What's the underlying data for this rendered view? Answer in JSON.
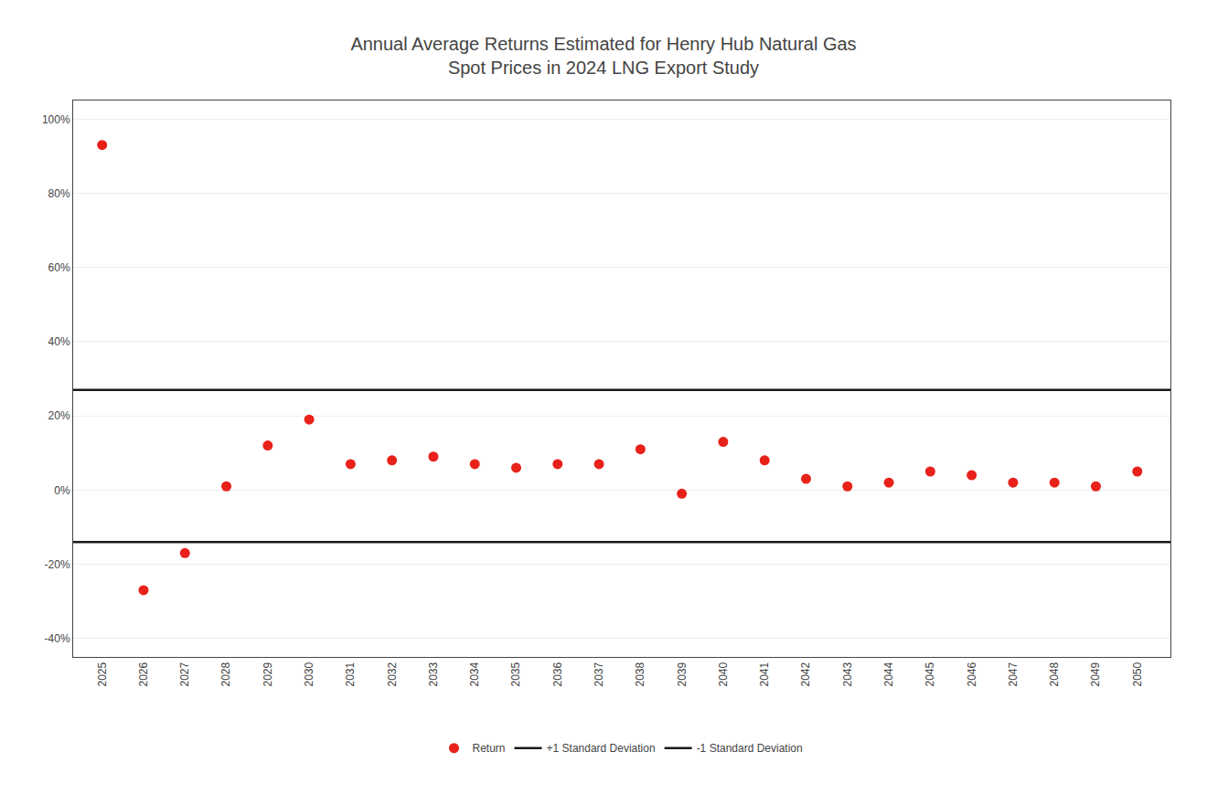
{
  "chart_data": {
    "type": "scatter",
    "title": "Annual Average Returns Estimated for Henry Hub Natural Gas\nSpot Prices in 2024 LNG Export Study",
    "x": [
      2025,
      2026,
      2027,
      2028,
      2029,
      2030,
      2031,
      2032,
      2033,
      2034,
      2035,
      2036,
      2037,
      2038,
      2039,
      2040,
      2041,
      2042,
      2043,
      2044,
      2045,
      2046,
      2047,
      2048,
      2049,
      2050
    ],
    "series": [
      {
        "name": "Return",
        "type": "scatter",
        "marker": "circle",
        "color": "#e8221a",
        "values": [
          0.93,
          -0.27,
          -0.17,
          0.01,
          0.12,
          0.19,
          0.07,
          0.08,
          0.09,
          0.07,
          0.06,
          0.07,
          0.07,
          0.11,
          -0.01,
          0.13,
          0.08,
          0.03,
          0.01,
          0.02,
          0.05,
          0.04,
          0.02,
          0.02,
          0.01,
          0.05
        ]
      }
    ],
    "horizontal_lines": [
      {
        "name": "+1 Standard Deviation",
        "value": 0.27,
        "color": "#1a1a1a",
        "line_style": "solid"
      },
      {
        "name": "-1 Standard Deviation",
        "value": -0.14,
        "color": "#1a1a1a",
        "line_style": "solid"
      }
    ],
    "xlim": [
      2024.3,
      2050.8
    ],
    "xticks": [
      2025,
      2026,
      2027,
      2028,
      2029,
      2030,
      2031,
      2032,
      2033,
      2034,
      2035,
      2036,
      2037,
      2038,
      2039,
      2040,
      2041,
      2042,
      2043,
      2044,
      2045,
      2046,
      2047,
      2048,
      2049,
      2050
    ],
    "ylim": [
      -0.45,
      1.05
    ],
    "yticks": [
      {
        "value": -0.4,
        "label": "-40%"
      },
      {
        "value": -0.2,
        "label": "-20%"
      },
      {
        "value": 0.0,
        "label": "0%"
      },
      {
        "value": 0.2,
        "label": "20%"
      },
      {
        "value": 0.4,
        "label": "40%"
      },
      {
        "value": 0.6,
        "label": "60%"
      },
      {
        "value": 0.8,
        "label": "80%"
      },
      {
        "value": 1.0,
        "label": "100%"
      }
    ],
    "grid": true,
    "legend": "bottom"
  }
}
